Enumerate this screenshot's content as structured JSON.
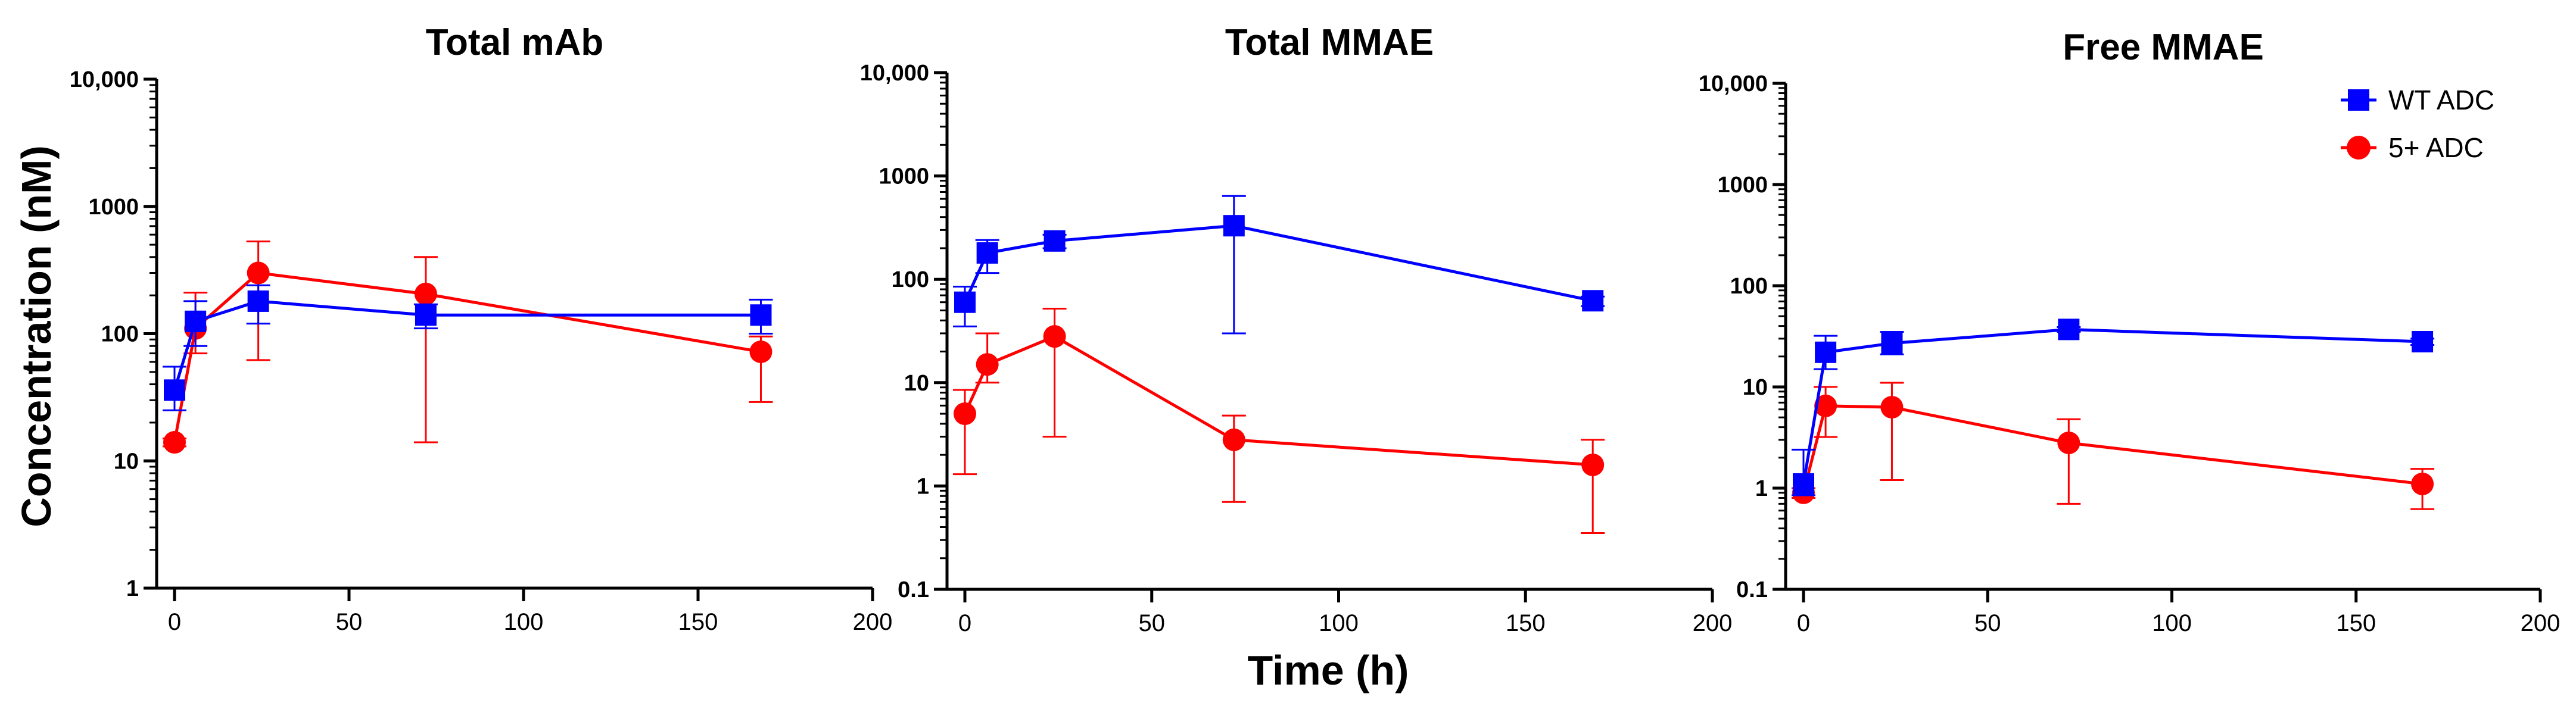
{
  "chart_data": {
    "type": "line",
    "ylabel": "Concentration (nM)",
    "xlabel": "Time (h)",
    "legend": {
      "position": "top-right",
      "entries": [
        {
          "name": "WT ADC",
          "color": "#0000ff",
          "marker": "square"
        },
        {
          "name": "5+ ADC",
          "color": "#ff0000",
          "marker": "circle"
        }
      ]
    },
    "panels": [
      {
        "title": "Total mAb",
        "y_scale": "log",
        "ylim": [
          1,
          10000
        ],
        "y_ticks": [
          1,
          10,
          100,
          1000,
          10000
        ],
        "y_tick_labels": [
          "1",
          "10",
          "100",
          "1000",
          "10,000"
        ],
        "xlim": [
          0,
          200
        ],
        "x_ticks": [
          0,
          50,
          100,
          150,
          200
        ],
        "x_tick_labels": [
          "0",
          "50",
          "100",
          "150",
          "200"
        ],
        "series": [
          {
            "name": "WT ADC",
            "color": "#0000ff",
            "marker": "square",
            "x": [
              0,
              6,
              24,
              72,
              168
            ],
            "y": [
              36,
              125,
              180,
              140,
              140
            ],
            "err_low": [
              25,
              80,
              120,
              110,
              100
            ],
            "err_high": [
              55,
              180,
              240,
              170,
              185
            ]
          },
          {
            "name": "5+ ADC",
            "color": "#ff0000",
            "marker": "circle",
            "x": [
              0,
              6,
              24,
              72,
              168
            ],
            "y": [
              14,
              110,
              300,
              205,
              72
            ],
            "err_low": [
              13,
              70,
              62,
              14,
              29
            ],
            "err_high": [
              15,
              210,
              530,
              400,
              95
            ]
          }
        ]
      },
      {
        "title": "Total MMAE",
        "y_scale": "log",
        "ylim": [
          0.1,
          10000
        ],
        "y_ticks": [
          0.1,
          1,
          10,
          100,
          1000,
          10000
        ],
        "y_tick_labels": [
          "0.1",
          "1",
          "10",
          "100",
          "1000",
          "10,000"
        ],
        "xlim": [
          0,
          200
        ],
        "x_ticks": [
          0,
          50,
          100,
          150,
          200
        ],
        "x_tick_labels": [
          "0",
          "50",
          "100",
          "150",
          "200"
        ],
        "series": [
          {
            "name": "WT ADC",
            "color": "#0000ff",
            "marker": "square",
            "x": [
              0,
              6,
              24,
              72,
              168
            ],
            "y": [
              60,
              180,
              235,
              330,
              62
            ],
            "err_low": [
              35,
              115,
              200,
              30,
              55
            ],
            "err_high": [
              85,
              240,
              270,
              640,
              68
            ]
          },
          {
            "name": "5+ ADC",
            "color": "#ff0000",
            "marker": "circle",
            "x": [
              0,
              6,
              24,
              72,
              168
            ],
            "y": [
              5,
              15,
              28,
              2.8,
              1.6
            ],
            "err_low": [
              1.3,
              10,
              3,
              0.7,
              0.35
            ],
            "err_high": [
              8.5,
              30,
              52,
              4.8,
              2.8
            ]
          }
        ]
      },
      {
        "title": "Free MMAE",
        "y_scale": "log",
        "ylim": [
          0.1,
          10000
        ],
        "y_ticks": [
          0.1,
          1,
          10,
          100,
          1000,
          10000
        ],
        "y_tick_labels": [
          "0.1",
          "1",
          "10",
          "100",
          "1000",
          "10,000"
        ],
        "xlim": [
          0,
          200
        ],
        "x_ticks": [
          0,
          50,
          100,
          150,
          200
        ],
        "x_tick_labels": [
          "0",
          "50",
          "100",
          "150",
          "200"
        ],
        "series": [
          {
            "name": "WT ADC",
            "color": "#0000ff",
            "marker": "square",
            "x": [
              0,
              6,
              24,
              72,
              168
            ],
            "y": [
              1.1,
              22,
              27,
              37,
              28
            ],
            "err_low": [
              0.85,
              15,
              21,
              35,
              26
            ],
            "err_high": [
              2.4,
              32,
              35,
              39,
              30
            ]
          },
          {
            "name": "5+ ADC",
            "color": "#ff0000",
            "marker": "circle",
            "x": [
              0,
              6,
              24,
              72,
              168
            ],
            "y": [
              0.9,
              6.5,
              6.3,
              2.8,
              1.1
            ],
            "err_low": [
              0.8,
              3.2,
              1.2,
              0.7,
              0.62
            ],
            "err_high": [
              1.0,
              10,
              11,
              4.8,
              1.55
            ]
          }
        ]
      }
    ]
  }
}
